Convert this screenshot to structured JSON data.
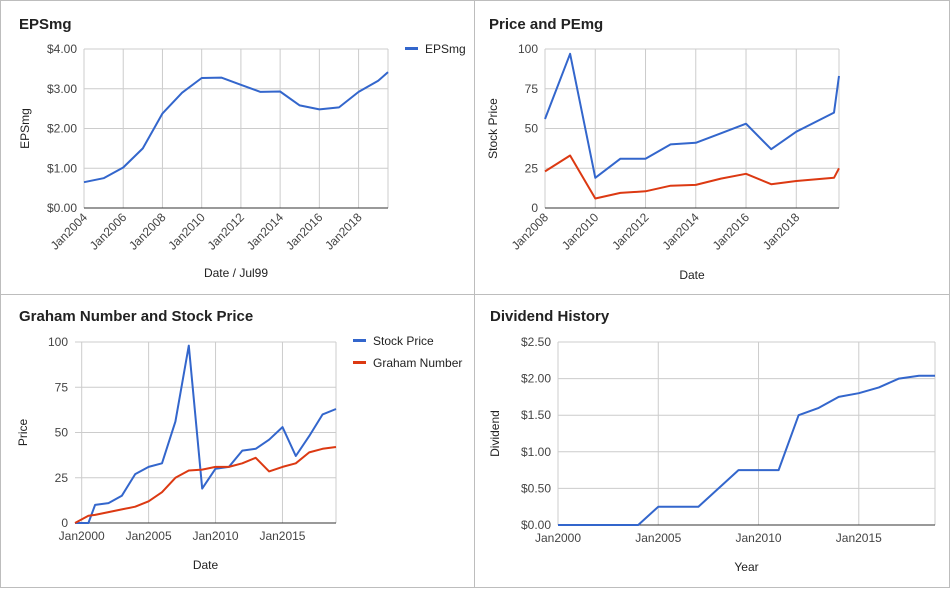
{
  "colors": {
    "blue": "#3366cc",
    "red": "#dc3912"
  },
  "chart_data": [
    {
      "type": "line",
      "title": "EPSmg",
      "xlabel": "Date / Jul99",
      "ylabel": "EPSmg",
      "ylim": [
        0,
        4
      ],
      "xlim": [
        2004,
        2019.5
      ],
      "yticks": [
        {
          "v": 0,
          "label": "$0.00"
        },
        {
          "v": 1,
          "label": "$1.00"
        },
        {
          "v": 2,
          "label": "$2.00"
        },
        {
          "v": 3,
          "label": "$3.00"
        },
        {
          "v": 4,
          "label": "$4.00"
        }
      ],
      "xticks": [
        {
          "v": 2004,
          "label": "Jan2004"
        },
        {
          "v": 2006,
          "label": "Jan2006"
        },
        {
          "v": 2008,
          "label": "Jan2008"
        },
        {
          "v": 2010,
          "label": "Jan2010"
        },
        {
          "v": 2012,
          "label": "Jan2012"
        },
        {
          "v": 2014,
          "label": "Jan2014"
        },
        {
          "v": 2016,
          "label": "Jan2016"
        },
        {
          "v": 2018,
          "label": "Jan2018"
        }
      ],
      "x_tick_rotation": true,
      "legend_position": "right",
      "series": [
        {
          "name": "EPSmg",
          "color": "#3366cc",
          "x": [
            2004,
            2005,
            2006,
            2007,
            2008,
            2009,
            2010,
            2011,
            2012,
            2013,
            2014,
            2015,
            2016,
            2017,
            2018,
            2019,
            2019.5
          ],
          "y": [
            0.65,
            0.75,
            1.02,
            1.5,
            2.38,
            2.9,
            3.27,
            3.28,
            3.1,
            2.92,
            2.93,
            2.58,
            2.48,
            2.53,
            2.92,
            3.2,
            3.42
          ]
        }
      ]
    },
    {
      "type": "line",
      "title": "Price and PEmg",
      "xlabel": "Date",
      "ylabel": "Stock Price",
      "ylim": [
        0,
        100
      ],
      "xlim": [
        2008,
        2019.7
      ],
      "yticks": [
        {
          "v": 0,
          "label": "0"
        },
        {
          "v": 25,
          "label": "25"
        },
        {
          "v": 50,
          "label": "50"
        },
        {
          "v": 75,
          "label": "75"
        },
        {
          "v": 100,
          "label": "100"
        }
      ],
      "xticks": [
        {
          "v": 2008,
          "label": "Jan2008"
        },
        {
          "v": 2010,
          "label": "Jan2010"
        },
        {
          "v": 2012,
          "label": "Jan2012"
        },
        {
          "v": 2014,
          "label": "Jan2014"
        },
        {
          "v": 2016,
          "label": "Jan2016"
        },
        {
          "v": 2018,
          "label": "Jan2018"
        }
      ],
      "x_tick_rotation": true,
      "legend_position": "right",
      "series": [
        {
          "name": "Stock Price",
          "color": "#3366cc",
          "x": [
            2008,
            2009,
            2010,
            2011,
            2012,
            2013,
            2014,
            2015,
            2016,
            2017,
            2018,
            2019.5,
            2019.7
          ],
          "y": [
            56,
            97,
            19,
            31,
            31,
            40,
            41,
            47,
            53,
            37,
            48,
            60,
            83
          ]
        },
        {
          "name": "PEmg",
          "color": "#dc3912",
          "x": [
            2008,
            2009,
            2010,
            2011,
            2012,
            2013,
            2014,
            2015,
            2016,
            2017,
            2018,
            2019.5,
            2019.7
          ],
          "y": [
            23,
            33,
            6,
            9.5,
            10.5,
            14,
            14.5,
            18.5,
            21.5,
            15,
            17,
            19,
            25
          ]
        }
      ]
    },
    {
      "type": "line",
      "title": "Graham Number and Stock Price",
      "xlabel": "Date",
      "ylabel": "Price",
      "ylim": [
        0,
        100
      ],
      "xlim": [
        1999.5,
        2019
      ],
      "yticks": [
        {
          "v": 0,
          "label": "0"
        },
        {
          "v": 25,
          "label": "25"
        },
        {
          "v": 50,
          "label": "50"
        },
        {
          "v": 75,
          "label": "75"
        },
        {
          "v": 100,
          "label": "100"
        }
      ],
      "xticks": [
        {
          "v": 2000,
          "label": "Jan2000"
        },
        {
          "v": 2005,
          "label": "Jan2005"
        },
        {
          "v": 2010,
          "label": "Jan2010"
        },
        {
          "v": 2015,
          "label": "Jan2015"
        }
      ],
      "x_tick_rotation": false,
      "legend_position": "right",
      "series": [
        {
          "name": "Stock Price",
          "color": "#3366cc",
          "x": [
            1999.5,
            2000.5,
            2001,
            2002,
            2003,
            2004,
            2005,
            2006,
            2007,
            2008,
            2009,
            2010,
            2011,
            2012,
            2013,
            2014,
            2015,
            2016,
            2017,
            2018,
            2019
          ],
          "y": [
            0,
            0,
            10,
            11,
            15,
            27,
            31,
            33,
            56,
            98,
            19,
            30,
            31,
            40,
            41,
            46,
            53,
            37,
            48,
            60,
            63
          ]
        },
        {
          "name": "Graham Number",
          "color": "#dc3912",
          "x": [
            1999.5,
            2000.5,
            2001,
            2002,
            2003,
            2004,
            2005,
            2006,
            2007,
            2008,
            2009,
            2010,
            2011,
            2012,
            2013,
            2014,
            2015,
            2016,
            2017,
            2018,
            2019
          ],
          "y": [
            0,
            4,
            4.5,
            6,
            7.5,
            9,
            12,
            17,
            25,
            29,
            29.5,
            31,
            31,
            33,
            36,
            28.5,
            31,
            33,
            39,
            41,
            42
          ]
        }
      ]
    },
    {
      "type": "line",
      "title": "Dividend History",
      "xlabel": "Year",
      "ylabel": "Dividend",
      "ylim": [
        0,
        2.5
      ],
      "xlim": [
        2000,
        2018.8
      ],
      "yticks": [
        {
          "v": 0,
          "label": "$0.00"
        },
        {
          "v": 0.5,
          "label": "$0.50"
        },
        {
          "v": 1,
          "label": "$1.00"
        },
        {
          "v": 1.5,
          "label": "$1.50"
        },
        {
          "v": 2,
          "label": "$2.00"
        },
        {
          "v": 2.5,
          "label": "$2.50"
        }
      ],
      "xticks": [
        {
          "v": 2000,
          "label": "Jan2000"
        },
        {
          "v": 2005,
          "label": "Jan2005"
        },
        {
          "v": 2010,
          "label": "Jan2010"
        },
        {
          "v": 2015,
          "label": "Jan2015"
        }
      ],
      "x_tick_rotation": false,
      "legend_position": "none",
      "series": [
        {
          "name": "",
          "color": "#3366cc",
          "x": [
            2000,
            2004,
            2005,
            2007,
            2009,
            2010,
            2011,
            2012,
            2013,
            2014,
            2015,
            2016,
            2017,
            2018,
            2018.8
          ],
          "y": [
            0,
            0,
            0.25,
            0.25,
            0.75,
            0.75,
            0.75,
            1.5,
            1.6,
            1.75,
            1.8,
            1.88,
            2.0,
            2.04,
            2.04
          ]
        }
      ]
    }
  ]
}
